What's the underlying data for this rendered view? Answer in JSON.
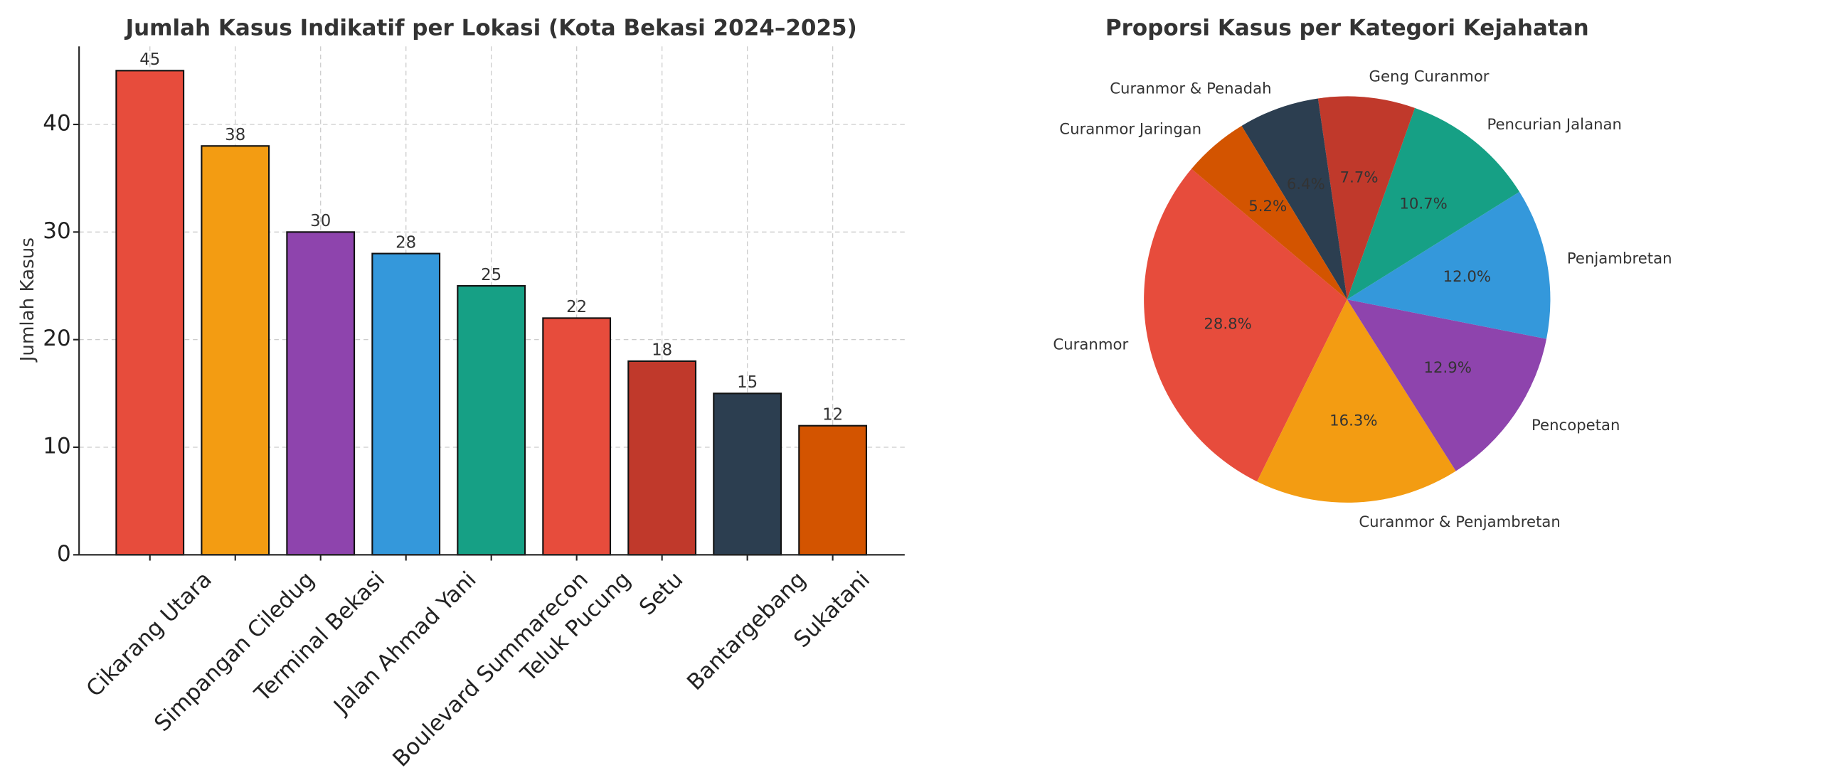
{
  "chart_data": [
    {
      "type": "bar",
      "title": "Jumlah Kasus Indikatif per Lokasi (Kota Bekasi 2024–2025)",
      "y_label": "Jumlah Kasus",
      "categories": [
        "Cikarang Utara",
        "Simpangan Ciledug",
        "Terminal Bekasi",
        "Jalan Ahmad Yani",
        "Boulevard Summarecon",
        "Teluk Pucung",
        "Setu",
        "Bantargebang",
        "Sukatani"
      ],
      "values": [
        45,
        38,
        30,
        28,
        25,
        22,
        18,
        15,
        12
      ],
      "colors": [
        "#e74c3c",
        "#f39c12",
        "#8e44ad",
        "#3498db",
        "#16a085",
        "#e74c3c",
        "#c0392b",
        "#2c3e50",
        "#d35400"
      ],
      "ylim": [
        0,
        47.25
      ],
      "yticks": [
        0,
        10,
        20,
        30,
        40
      ],
      "grid": true
    },
    {
      "type": "pie",
      "title": "Proporsi Kasus per Kategori Kejahatan",
      "categories": [
        "Curanmor",
        "Curanmor & Penjambretan",
        "Pencopetan",
        "Penjambretan",
        "Pencurian Jalanan",
        "Geng Curanmor",
        "Curanmor & Penadah",
        "Curanmor Jaringan"
      ],
      "values": [
        28.8,
        16.3,
        12.9,
        12.0,
        10.7,
        7.7,
        6.4,
        5.2
      ],
      "value_labels": [
        "28.8%",
        "16.3%",
        "12.9%",
        "12.0%",
        "10.7%",
        "7.7%",
        "6.4%",
        "5.2%"
      ],
      "colors": [
        "#e74c3c",
        "#f39c12",
        "#8e44ad",
        "#3498db",
        "#16a085",
        "#c0392b",
        "#2c3e50",
        "#d35400"
      ]
    }
  ]
}
